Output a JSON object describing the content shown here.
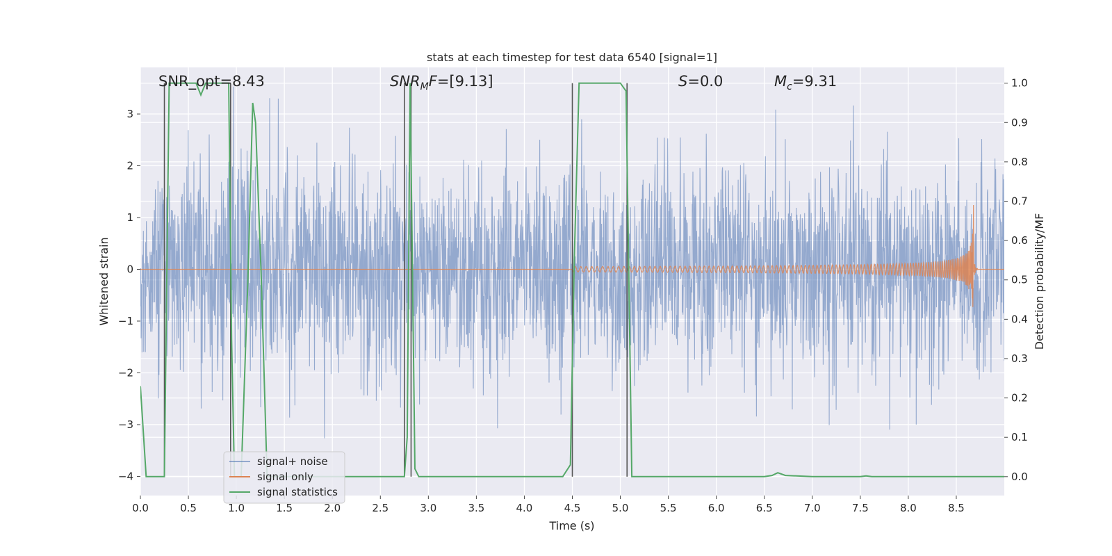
{
  "chart_data": {
    "type": "line",
    "title": "stats at each timestep for test data 6540 [signal=1]",
    "xlabel": "Time (s)",
    "ylabel_left": "Whitened strain",
    "ylabel_right": "Detection probability/MF",
    "xlim": [
      0.0,
      9.0
    ],
    "ylim_left": [
      -4.37,
      3.9
    ],
    "ylim_right": [
      -0.048,
      1.04
    ],
    "x_ticks": [
      0.0,
      0.5,
      1.0,
      1.5,
      2.0,
      2.5,
      3.0,
      3.5,
      4.0,
      4.5,
      5.0,
      5.5,
      6.0,
      6.5,
      7.0,
      7.5,
      8.0,
      8.5
    ],
    "x_tick_labels": [
      "0.0",
      "0.5",
      "1.0",
      "1.5",
      "2.0",
      "2.5",
      "3.0",
      "3.5",
      "4.0",
      "4.5",
      "5.0",
      "5.5",
      "6.0",
      "6.5",
      "7.0",
      "7.5",
      "8.0",
      "8.5"
    ],
    "y_left_ticks": [
      -4,
      -3,
      -2,
      -1,
      0,
      1,
      2,
      3
    ],
    "y_left_tick_labels": [
      "−4",
      "−3",
      "−2",
      "−1",
      "0",
      "1",
      "2",
      "3"
    ],
    "y_right_ticks": [
      0.0,
      0.1,
      0.2,
      0.3,
      0.4,
      0.5,
      0.6,
      0.7,
      0.8,
      0.9,
      1.0
    ],
    "y_right_tick_labels": [
      "0.0",
      "0.1",
      "0.2",
      "0.3",
      "0.4",
      "0.5",
      "0.6",
      "0.7",
      "0.8",
      "0.9",
      "1.0"
    ],
    "grid": true,
    "legend_position": "lower-left",
    "legend": [
      "signal+ noise",
      "signal only",
      "signal statistics"
    ],
    "annotations": [
      {
        "id": "snr-opt",
        "text": "SNR_opt=8.43",
        "x": 0.2
      },
      {
        "id": "snr-mf",
        "text": "=[9.13]",
        "math": "SNR",
        "sub": "M",
        "suffix": "F",
        "x": 2.6
      },
      {
        "id": "s-stat",
        "text": "=0.0",
        "math": "S",
        "x": 5.6
      },
      {
        "id": "chirp-mass",
        "text": "=9.31",
        "math": "M",
        "sub": "c",
        "x": 6.6
      }
    ],
    "series": [
      {
        "name": "signal+ noise",
        "axis": "left",
        "color": "#4c72b0",
        "opacity": 0.55,
        "kind": "noise",
        "sigma": 1.0,
        "approx_range": [
          -4.0,
          3.6
        ]
      },
      {
        "name": "signal only",
        "axis": "left",
        "color": "#dd8452",
        "kind": "chirp",
        "t_start": 4.5,
        "t_merger": 8.68,
        "peak_amplitude": 1.0,
        "min_amplitude": 1.25
      },
      {
        "name": "signal statistics",
        "axis": "right",
        "color": "#55a868",
        "x": [
          0.0,
          0.06,
          0.22,
          0.25,
          0.3,
          0.5,
          0.58,
          0.63,
          0.68,
          0.78,
          0.92,
          0.95,
          0.98,
          1.05,
          1.12,
          1.17,
          1.2,
          1.26,
          1.32,
          1.38,
          1.5,
          2.0,
          2.5,
          2.7,
          2.75,
          2.78,
          2.81,
          2.86,
          2.9,
          2.96,
          3.5,
          4.0,
          4.4,
          4.48,
          4.52,
          4.57,
          4.7,
          5.0,
          5.06,
          5.12,
          5.25,
          6.0,
          6.5,
          6.58,
          6.64,
          6.72,
          7.0,
          7.5,
          7.56,
          7.62,
          8.0,
          8.5,
          9.0
        ],
        "y": [
          0.23,
          0.0,
          0.0,
          0.0,
          1.0,
          1.0,
          1.0,
          0.97,
          1.0,
          1.0,
          1.0,
          0.35,
          0.0,
          0.0,
          0.5,
          0.95,
          0.9,
          0.5,
          0.0,
          0.0,
          0.0,
          0.0,
          0.0,
          0.0,
          0.0,
          0.1,
          1.0,
          0.02,
          0.0,
          0.0,
          0.0,
          0.0,
          0.0,
          0.03,
          0.55,
          1.0,
          1.0,
          1.0,
          0.98,
          0.0,
          0.0,
          0.0,
          0.0,
          0.003,
          0.01,
          0.003,
          0.0,
          0.0,
          0.002,
          0.0,
          0.0,
          0.0,
          0.0
        ]
      }
    ],
    "vertical_lines": [
      0.25,
      0.94,
      2.75,
      2.82,
      4.5,
      5.07
    ]
  },
  "colors": {
    "plot_bg": "#eaeaf2",
    "grid": "#ffffff",
    "text": "#262626",
    "vline": "#555555"
  }
}
